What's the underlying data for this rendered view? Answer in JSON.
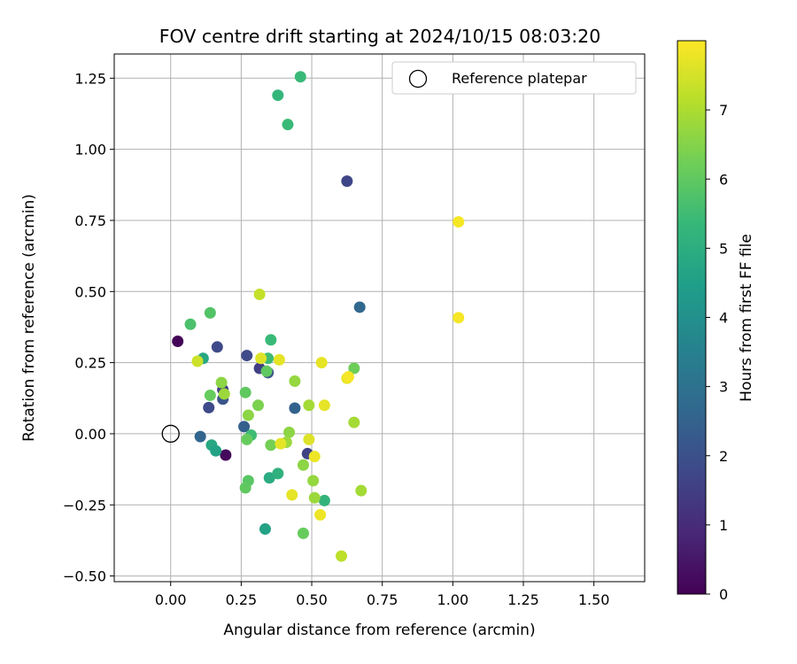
{
  "chart_data": {
    "type": "scatter",
    "title": "FOV centre drift starting at 2024/10/15 08:03:20",
    "xlabel": "Angular distance from reference (arcmin)",
    "ylabel": "Rotation from reference (arcmin)",
    "xlim": [
      -0.2,
      1.68
    ],
    "ylim": [
      -0.52,
      1.335
    ],
    "xticks": [
      0.0,
      0.25,
      0.5,
      0.75,
      1.0,
      1.25,
      1.5
    ],
    "xtick_labels": [
      "0.00",
      "0.25",
      "0.50",
      "0.75",
      "1.00",
      "1.25",
      "1.50"
    ],
    "yticks": [
      -0.5,
      -0.25,
      0.0,
      0.25,
      0.5,
      0.75,
      1.0,
      1.25
    ],
    "ytick_labels": [
      "−0.50",
      "−0.25",
      "0.00",
      "0.25",
      "0.50",
      "0.75",
      "1.00",
      "1.25"
    ],
    "grid": true,
    "legend": {
      "position": "top-right",
      "entries": [
        {
          "label": "Reference platepar",
          "marker": "open-circle"
        }
      ]
    },
    "reference_point": {
      "x": 0.0,
      "y": 0.0
    },
    "colorbar": {
      "label": "Hours from first FF file",
      "colormap": "viridis",
      "range": [
        0,
        8
      ],
      "ticks": [
        0,
        1,
        2,
        3,
        4,
        5,
        6,
        7
      ],
      "colors": [
        "#440154",
        "#482878",
        "#3e4989",
        "#31688e",
        "#26828e",
        "#1f9e89",
        "#35b779",
        "#6ece58",
        "#b5de2b",
        "#fde725"
      ]
    },
    "points": [
      {
        "x": 0.025,
        "y": 0.325,
        "h": 0.1
      },
      {
        "x": 0.195,
        "y": -0.075,
        "h": 0.2
      },
      {
        "x": 0.165,
        "y": 0.305,
        "h": 1.8
      },
      {
        "x": 0.135,
        "y": 0.092,
        "h": 1.8
      },
      {
        "x": 0.185,
        "y": 0.155,
        "h": 1.5
      },
      {
        "x": 0.185,
        "y": 0.122,
        "h": 2.1
      },
      {
        "x": 0.27,
        "y": 0.275,
        "h": 1.8
      },
      {
        "x": 0.315,
        "y": 0.23,
        "h": 1.5
      },
      {
        "x": 0.345,
        "y": 0.215,
        "h": 2.0
      },
      {
        "x": 0.625,
        "y": 0.888,
        "h": 1.7
      },
      {
        "x": 0.485,
        "y": -0.07,
        "h": 1.6
      },
      {
        "x": 0.44,
        "y": 0.09,
        "h": 2.5
      },
      {
        "x": 0.105,
        "y": -0.01,
        "h": 2.6
      },
      {
        "x": 0.26,
        "y": 0.025,
        "h": 2.4
      },
      {
        "x": 0.67,
        "y": 0.445,
        "h": 2.7
      },
      {
        "x": 0.115,
        "y": 0.265,
        "h": 4.8
      },
      {
        "x": 0.145,
        "y": -0.04,
        "h": 4.8
      },
      {
        "x": 0.16,
        "y": -0.06,
        "h": 4.6
      },
      {
        "x": 0.335,
        "y": -0.335,
        "h": 4.6
      },
      {
        "x": 0.35,
        "y": -0.155,
        "h": 4.9
      },
      {
        "x": 0.38,
        "y": -0.14,
        "h": 5.1
      },
      {
        "x": 0.38,
        "y": 1.19,
        "h": 5.3
      },
      {
        "x": 0.46,
        "y": 1.255,
        "h": 5.4
      },
      {
        "x": 0.415,
        "y": 1.087,
        "h": 5.4
      },
      {
        "x": 0.545,
        "y": -0.235,
        "h": 5.2
      },
      {
        "x": 0.355,
        "y": 0.33,
        "h": 5.4
      },
      {
        "x": 0.345,
        "y": 0.265,
        "h": 5.5
      },
      {
        "x": 0.285,
        "y": -0.005,
        "h": 5.5
      },
      {
        "x": 0.07,
        "y": 0.385,
        "h": 5.7
      },
      {
        "x": 0.14,
        "y": 0.425,
        "h": 5.8
      },
      {
        "x": 0.275,
        "y": -0.165,
        "h": 5.9
      },
      {
        "x": 0.265,
        "y": -0.19,
        "h": 6.0
      },
      {
        "x": 0.265,
        "y": 0.145,
        "h": 6.0
      },
      {
        "x": 0.34,
        "y": 0.22,
        "h": 6.0
      },
      {
        "x": 0.14,
        "y": 0.135,
        "h": 6.1
      },
      {
        "x": 0.27,
        "y": -0.02,
        "h": 6.1
      },
      {
        "x": 0.47,
        "y": -0.35,
        "h": 6.1
      },
      {
        "x": 0.65,
        "y": 0.23,
        "h": 6.2
      },
      {
        "x": 0.355,
        "y": -0.04,
        "h": 6.3
      },
      {
        "x": 0.31,
        "y": 0.1,
        "h": 6.4
      },
      {
        "x": 0.275,
        "y": 0.065,
        "h": 6.6
      },
      {
        "x": 0.18,
        "y": 0.18,
        "h": 6.6
      },
      {
        "x": 0.19,
        "y": 0.14,
        "h": 6.8
      },
      {
        "x": 0.44,
        "y": 0.185,
        "h": 6.7
      },
      {
        "x": 0.42,
        "y": 0.005,
        "h": 6.6
      },
      {
        "x": 0.41,
        "y": -0.03,
        "h": 6.8
      },
      {
        "x": 0.47,
        "y": -0.11,
        "h": 6.6
      },
      {
        "x": 0.505,
        "y": -0.165,
        "h": 6.7
      },
      {
        "x": 0.49,
        "y": 0.1,
        "h": 6.9
      },
      {
        "x": 0.51,
        "y": -0.225,
        "h": 6.8
      },
      {
        "x": 0.65,
        "y": 0.04,
        "h": 6.9
      },
      {
        "x": 0.675,
        "y": -0.2,
        "h": 6.9
      },
      {
        "x": 0.605,
        "y": -0.43,
        "h": 7.2
      },
      {
        "x": 0.095,
        "y": 0.255,
        "h": 7.4
      },
      {
        "x": 0.315,
        "y": 0.49,
        "h": 7.3
      },
      {
        "x": 0.32,
        "y": 0.265,
        "h": 7.6
      },
      {
        "x": 0.385,
        "y": 0.26,
        "h": 7.7
      },
      {
        "x": 0.39,
        "y": -0.035,
        "h": 7.7
      },
      {
        "x": 0.43,
        "y": -0.215,
        "h": 7.7
      },
      {
        "x": 0.49,
        "y": -0.02,
        "h": 7.6
      },
      {
        "x": 0.51,
        "y": -0.08,
        "h": 7.8
      },
      {
        "x": 0.535,
        "y": 0.25,
        "h": 7.7
      },
      {
        "x": 0.545,
        "y": 0.1,
        "h": 7.7
      },
      {
        "x": 0.53,
        "y": -0.285,
        "h": 7.8
      },
      {
        "x": 0.625,
        "y": 0.195,
        "h": 7.7
      },
      {
        "x": 0.63,
        "y": 0.2,
        "h": 7.9
      },
      {
        "x": 1.02,
        "y": 0.745,
        "h": 7.9
      },
      {
        "x": 1.02,
        "y": 0.408,
        "h": 7.9
      }
    ]
  }
}
